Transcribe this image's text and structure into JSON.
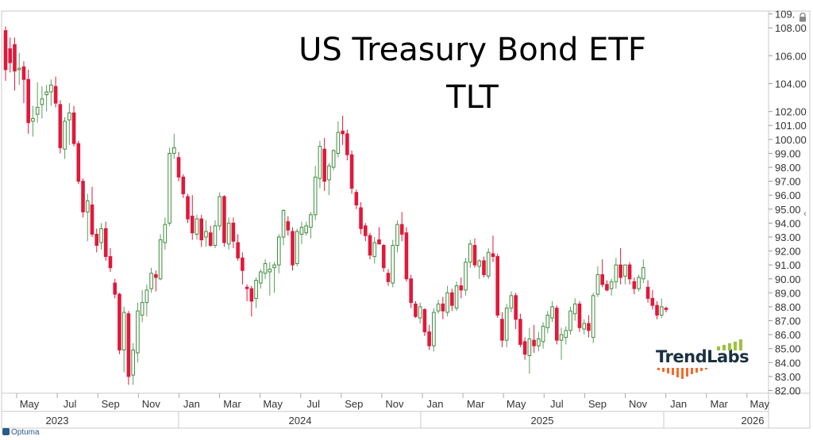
{
  "chart_data": {
    "type": "candlestick",
    "title": "US Treasury Bond ETF",
    "subtitle": "TLT",
    "xlabel": "",
    "ylabel": "",
    "ylim": [
      81.8,
      109.2
    ],
    "y_ticks": [
      82,
      83,
      84,
      85,
      86,
      87,
      88,
      89,
      90,
      91,
      92,
      93,
      94,
      95,
      96,
      97,
      98,
      99,
      100,
      101,
      102,
      104,
      106,
      108,
      109
    ],
    "y_tick_labels": [
      "82.00",
      "83.00",
      "84.00",
      "85.00",
      "86.00",
      "87.00",
      "88.00",
      "89.00",
      "90.00",
      "91.00",
      "92.00",
      "93.00",
      "94.00",
      "95.00",
      "96.00",
      "97.00",
      "98.00",
      "99.00",
      "100.00",
      "101.00",
      "102.00",
      "104.00",
      "106.00",
      "108.00",
      "109."
    ],
    "x_months": [
      "May",
      "Jul",
      "Sep",
      "Nov",
      "Jan",
      "Mar",
      "May",
      "Jul",
      "Sep",
      "Nov",
      "Jan",
      "Mar",
      "May",
      "Jul",
      "Sep",
      "Nov",
      "Jan",
      "Mar",
      "May"
    ],
    "x_years": [
      "2023",
      "2024",
      "2025",
      "2026"
    ],
    "grid": false,
    "up_color": "#2e8b2e",
    "down_color": "#e0193a",
    "candles_open_high_low_close": [
      [
        107.8,
        108.1,
        104.2,
        105.0
      ],
      [
        106.5,
        107.3,
        104.8,
        105.5
      ],
      [
        106.8,
        107.3,
        103.5,
        104.9
      ],
      [
        105.0,
        106.2,
        103.9,
        105.1
      ],
      [
        105.2,
        105.6,
        102.6,
        104.3
      ],
      [
        104.3,
        105.0,
        100.4,
        101.2
      ],
      [
        101.3,
        102.4,
        100.2,
        101.5
      ],
      [
        101.8,
        104.1,
        101.2,
        102.3
      ],
      [
        102.5,
        103.8,
        101.5,
        102.9
      ],
      [
        103.2,
        103.9,
        102.0,
        103.4
      ],
      [
        103.4,
        104.3,
        102.4,
        103.9
      ],
      [
        103.8,
        104.5,
        102.3,
        102.6
      ],
      [
        102.5,
        102.8,
        99.0,
        99.4
      ],
      [
        99.3,
        101.6,
        98.6,
        101.3
      ],
      [
        101.4,
        102.6,
        99.6,
        101.9
      ],
      [
        101.9,
        102.4,
        99.5,
        99.7
      ],
      [
        99.7,
        99.9,
        96.8,
        97.0
      ],
      [
        97.0,
        97.2,
        94.4,
        94.8
      ],
      [
        94.8,
        96.1,
        92.7,
        95.6
      ],
      [
        95.3,
        96.6,
        93.0,
        93.2
      ],
      [
        93.2,
        93.6,
        91.9,
        92.4
      ],
      [
        92.6,
        94.0,
        92.1,
        93.6
      ],
      [
        93.6,
        94.1,
        91.3,
        91.6
      ],
      [
        91.6,
        92.2,
        90.5,
        90.8
      ],
      [
        89.7,
        90.0,
        88.6,
        88.9
      ],
      [
        88.9,
        89.0,
        84.6,
        84.9
      ],
      [
        84.9,
        88.0,
        83.3,
        87.6
      ],
      [
        87.5,
        87.7,
        82.4,
        83.0
      ],
      [
        83.1,
        85.4,
        82.4,
        84.9
      ],
      [
        84.7,
        88.3,
        84.0,
        87.7
      ],
      [
        87.4,
        89.2,
        86.9,
        88.3
      ],
      [
        88.3,
        89.6,
        87.3,
        89.2
      ],
      [
        89.3,
        90.8,
        89.0,
        90.4
      ],
      [
        90.3,
        90.6,
        89.1,
        90.1
      ],
      [
        90.0,
        93.2,
        89.9,
        92.8
      ],
      [
        92.6,
        94.4,
        92.1,
        93.9
      ],
      [
        94.0,
        99.4,
        93.8,
        99.0
      ],
      [
        99.0,
        100.4,
        98.6,
        99.4
      ],
      [
        98.7,
        99.1,
        97.0,
        97.3
      ],
      [
        97.3,
        97.5,
        95.8,
        96.1
      ],
      [
        95.9,
        96.1,
        94.0,
        94.3
      ],
      [
        94.5,
        96.0,
        92.8,
        93.3
      ],
      [
        93.2,
        94.6,
        92.8,
        94.3
      ],
      [
        94.3,
        94.6,
        92.3,
        92.8
      ],
      [
        93.0,
        94.2,
        92.3,
        93.4
      ],
      [
        93.3,
        93.8,
        92.3,
        92.4
      ],
      [
        92.4,
        94.2,
        92.2,
        93.8
      ],
      [
        93.8,
        96.2,
        93.5,
        95.9
      ],
      [
        95.9,
        96.0,
        92.3,
        92.6
      ],
      [
        92.5,
        94.4,
        92.1,
        94.0
      ],
      [
        94.0,
        94.4,
        92.2,
        92.7
      ],
      [
        92.6,
        93.2,
        91.3,
        91.5
      ],
      [
        91.5,
        91.9,
        89.6,
        90.6
      ],
      [
        89.4,
        89.6,
        88.4,
        89.3
      ],
      [
        89.3,
        89.5,
        87.3,
        88.4
      ],
      [
        88.6,
        90.1,
        87.9,
        89.9
      ],
      [
        89.7,
        90.7,
        89.3,
        90.5
      ],
      [
        90.4,
        91.4,
        90.0,
        91.1
      ],
      [
        90.5,
        91.2,
        88.8,
        90.7
      ],
      [
        90.8,
        91.2,
        89.0,
        91.0
      ],
      [
        91.0,
        93.2,
        90.4,
        93.0
      ],
      [
        93.0,
        95.0,
        92.4,
        94.9
      ],
      [
        94.1,
        94.5,
        93.1,
        93.5
      ],
      [
        93.4,
        93.7,
        90.6,
        91.0
      ],
      [
        91.1,
        93.6,
        90.9,
        93.4
      ],
      [
        93.2,
        94.1,
        92.5,
        93.7
      ],
      [
        93.3,
        94.1,
        93.1,
        93.8
      ],
      [
        93.7,
        94.8,
        92.9,
        94.6
      ],
      [
        94.6,
        98.1,
        94.2,
        97.3
      ],
      [
        97.2,
        99.9,
        96.5,
        99.5
      ],
      [
        99.3,
        100.1,
        96.3,
        97.0
      ],
      [
        97.1,
        98.3,
        96.0,
        98.1
      ],
      [
        98.0,
        99.3,
        97.8,
        99.2
      ],
      [
        99.0,
        101.3,
        98.7,
        100.5
      ],
      [
        100.6,
        101.7,
        99.6,
        100.4
      ],
      [
        100.4,
        100.7,
        98.5,
        98.9
      ],
      [
        98.9,
        99.2,
        96.1,
        96.5
      ],
      [
        96.2,
        96.4,
        95.0,
        95.3
      ],
      [
        95.1,
        95.5,
        93.2,
        93.6
      ],
      [
        93.8,
        94.0,
        92.7,
        93.1
      ],
      [
        93.1,
        93.3,
        91.4,
        91.7
      ],
      [
        91.6,
        93.0,
        91.1,
        92.6
      ],
      [
        92.8,
        93.7,
        92.5,
        92.5
      ],
      [
        92.4,
        92.5,
        90.5,
        90.8
      ],
      [
        90.4,
        90.7,
        89.5,
        89.8
      ],
      [
        89.7,
        92.8,
        89.4,
        92.4
      ],
      [
        92.4,
        94.2,
        91.9,
        93.9
      ],
      [
        93.9,
        94.8,
        92.7,
        93.2
      ],
      [
        93.3,
        93.7,
        89.8,
        90.0
      ],
      [
        90.0,
        90.3,
        87.9,
        88.3
      ],
      [
        88.2,
        88.4,
        87.2,
        87.3
      ],
      [
        87.2,
        88.3,
        86.8,
        88.0
      ],
      [
        87.8,
        87.9,
        85.9,
        86.2
      ],
      [
        86.2,
        86.7,
        84.9,
        85.2
      ],
      [
        85.2,
        87.9,
        84.8,
        87.6
      ],
      [
        87.7,
        88.5,
        87.5,
        88.2
      ],
      [
        88.2,
        88.7,
        87.1,
        87.7
      ],
      [
        87.6,
        89.5,
        87.3,
        89.0
      ],
      [
        89.0,
        89.3,
        87.7,
        88.1
      ],
      [
        87.9,
        89.8,
        87.7,
        89.5
      ],
      [
        89.5,
        90.1,
        88.6,
        89.2
      ],
      [
        89.2,
        91.5,
        88.8,
        91.2
      ],
      [
        91.2,
        92.8,
        90.8,
        92.5
      ],
      [
        92.4,
        92.9,
        90.8,
        91.0
      ],
      [
        90.9,
        91.4,
        90.0,
        91.3
      ],
      [
        91.3,
        91.6,
        90.1,
        90.3
      ],
      [
        90.2,
        92.2,
        90.0,
        91.9
      ],
      [
        91.8,
        93.1,
        91.2,
        91.6
      ],
      [
        91.6,
        91.8,
        87.2,
        87.4
      ],
      [
        87.1,
        87.6,
        85.1,
        85.6
      ],
      [
        85.6,
        88.2,
        85.1,
        87.9
      ],
      [
        87.9,
        89.1,
        87.6,
        88.8
      ],
      [
        88.8,
        89.0,
        86.4,
        87.1
      ],
      [
        87.1,
        87.5,
        85.1,
        85.3
      ],
      [
        85.5,
        85.8,
        84.2,
        84.6
      ],
      [
        84.5,
        86.5,
        83.2,
        85.7
      ],
      [
        85.6,
        86.7,
        84.7,
        85.2
      ],
      [
        85.2,
        86.2,
        84.8,
        85.7
      ],
      [
        85.5,
        86.9,
        85.0,
        86.6
      ],
      [
        86.5,
        87.7,
        86.1,
        87.4
      ],
      [
        87.2,
        88.4,
        86.9,
        88.0
      ],
      [
        87.9,
        88.1,
        85.3,
        85.6
      ],
      [
        85.6,
        86.5,
        84.2,
        86.0
      ],
      [
        85.8,
        86.6,
        85.3,
        86.3
      ],
      [
        86.3,
        88.0,
        86.0,
        87.7
      ],
      [
        87.5,
        88.6,
        87.0,
        88.2
      ],
      [
        88.2,
        88.4,
        86.2,
        86.5
      ],
      [
        86.4,
        87.1,
        86.0,
        86.8
      ],
      [
        86.8,
        87.4,
        85.8,
        86.3
      ],
      [
        85.8,
        89.0,
        85.4,
        88.8
      ],
      [
        88.9,
        90.9,
        88.7,
        90.3
      ],
      [
        90.3,
        91.4,
        89.4,
        89.6
      ],
      [
        89.6,
        89.9,
        89.1,
        89.2
      ],
      [
        89.3,
        90.0,
        88.8,
        89.8
      ],
      [
        89.8,
        91.5,
        89.3,
        91.0
      ],
      [
        91.0,
        92.2,
        89.6,
        90.1
      ],
      [
        90.2,
        91.0,
        89.6,
        91.0
      ],
      [
        91.0,
        91.2,
        89.6,
        90.0
      ],
      [
        89.8,
        90.1,
        88.9,
        89.3
      ],
      [
        89.3,
        90.3,
        89.1,
        90.1
      ],
      [
        90.0,
        91.4,
        89.7,
        90.8
      ],
      [
        89.4,
        89.9,
        88.3,
        88.6
      ],
      [
        88.6,
        89.2,
        87.8,
        88.1
      ],
      [
        88.1,
        88.4,
        87.1,
        87.4
      ],
      [
        87.4,
        88.6,
        87.2,
        88.0
      ],
      [
        87.9,
        88.0,
        87.6,
        87.8
      ]
    ]
  },
  "branding": {
    "logo_text": "TrendLabs",
    "footer_text": "Optuma"
  }
}
